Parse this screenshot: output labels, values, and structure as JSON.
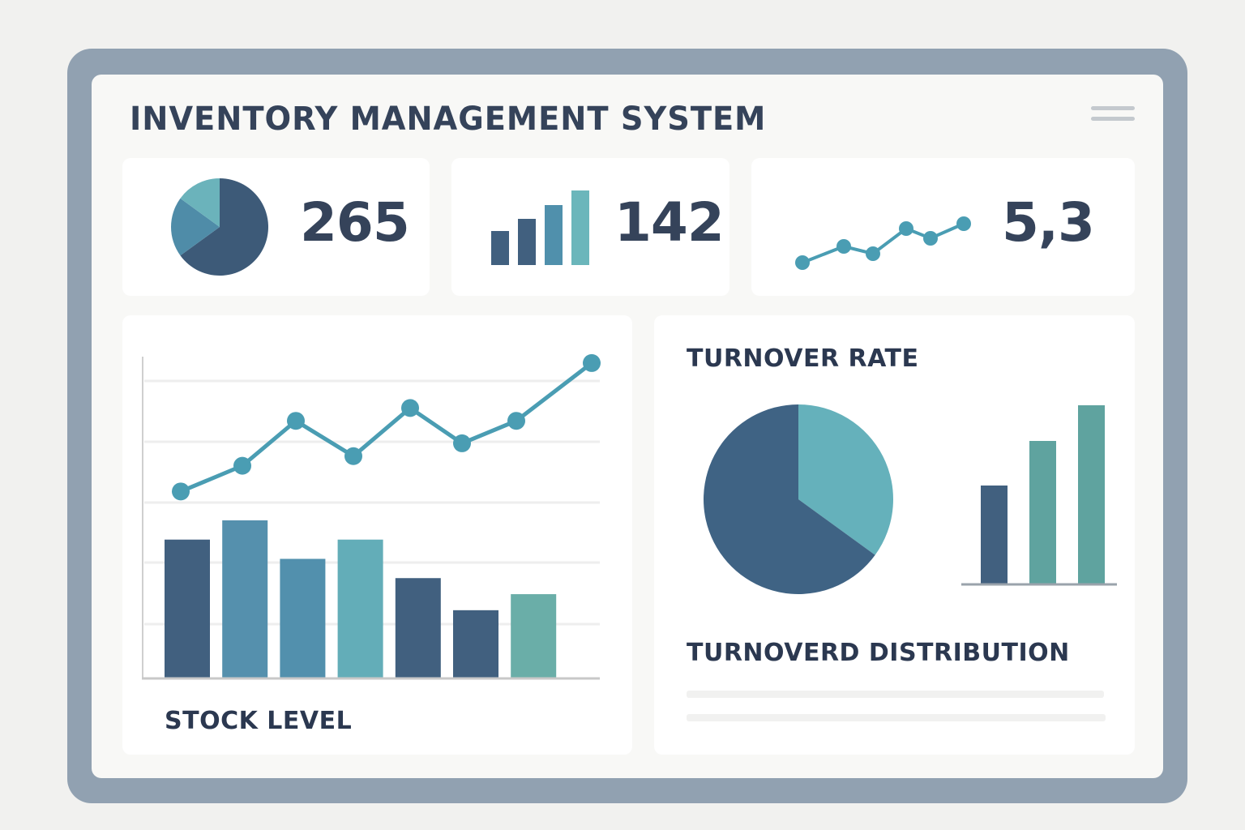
{
  "header": {
    "title": "INVENTORY MANAGEMENT SYSTEM",
    "menu_icon": "hamburger-icon"
  },
  "kpis": [
    {
      "value": "265",
      "icon": "pie-chart-icon",
      "slices": [
        65,
        20,
        15
      ],
      "colors": [
        "#3d5a78",
        "#4f8ca8",
        "#6bb3bb"
      ]
    },
    {
      "value": "142",
      "icon": "bar-chart-icon",
      "bars": [
        42,
        57,
        74,
        92
      ],
      "colors": [
        "#41607f",
        "#41607f",
        "#5090ac",
        "#6bb6bb"
      ]
    },
    {
      "value": "5,3",
      "icon": "line-chart-icon",
      "points": [
        10,
        30,
        21,
        52,
        40,
        58
      ],
      "color": "#4a9db3"
    }
  ],
  "stock_level": {
    "label": "STOCK LEVEL",
    "chart_data": {
      "type": "bar+line",
      "bars": [
        43,
        49,
        37,
        43,
        31,
        21,
        26
      ],
      "bar_colors": [
        "#41607f",
        "#5590ad",
        "#5290ad",
        "#63adb8",
        "#41607f",
        "#41607f",
        "#6aaea8"
      ],
      "line": [
        58,
        66,
        80,
        69,
        84,
        73,
        80,
        98
      ],
      "line_color": "#4a9db3",
      "ylim": [
        0,
        100
      ],
      "grid": true
    }
  },
  "turnover": {
    "title": "TURNOVER RATE",
    "subtitle": "TURNOVERD DISTRIBUTION",
    "chart_data": {
      "pie": {
        "type": "pie",
        "values": [
          65,
          35
        ],
        "colors": [
          "#3f6384",
          "#65b1bb"
        ]
      },
      "bars": {
        "type": "bar",
        "values": [
          55,
          80,
          100
        ],
        "colors": [
          "#41607f",
          "#5fa39f",
          "#5fa39f"
        ],
        "ylim": [
          0,
          100
        ]
      }
    }
  }
}
